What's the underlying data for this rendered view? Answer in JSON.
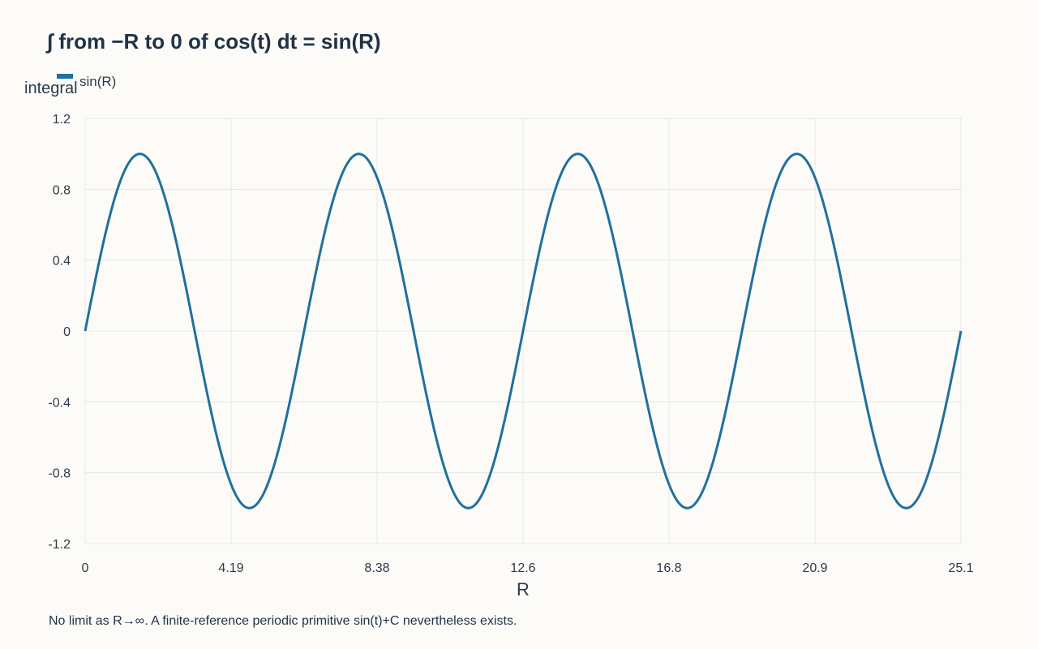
{
  "chart_data": {
    "type": "line",
    "title": "∫ from −R to 0 of cos(t) dt = sin(R)",
    "xlabel": "R",
    "ylabel": "integral",
    "xlim": [
      0,
      25.1327
    ],
    "ylim": [
      -1.2,
      1.2
    ],
    "x_ticks": [
      "0",
      "4.19",
      "8.38",
      "12.6",
      "16.8",
      "20.9",
      "25.1"
    ],
    "x_tick_values": [
      0,
      4.1888,
      8.3776,
      12.5664,
      16.7552,
      20.944,
      25.1327
    ],
    "y_ticks": [
      "1.2",
      "0.8",
      "0.4",
      "0",
      "-0.4",
      "-0.8",
      "-1.2"
    ],
    "y_tick_values": [
      1.2,
      0.8,
      0.4,
      0,
      -0.4,
      -0.8,
      -1.2
    ],
    "grid": true,
    "legend_position": "top-left",
    "series": [
      {
        "name": "sin(R)",
        "color": "#20709e",
        "x": [
          0,
          0.7854,
          1.5708,
          2.3562,
          3.1416,
          3.927,
          4.7124,
          5.4978,
          6.2832,
          7.0686,
          7.854,
          8.6394,
          9.4248,
          10.2102,
          10.9956,
          11.781,
          12.5664,
          13.3518,
          14.1372,
          14.9226,
          15.708,
          16.4934,
          17.2788,
          18.0642,
          18.8496,
          19.635,
          20.4204,
          21.2058,
          21.9911,
          22.7765,
          23.5619,
          24.3473,
          25.1327
        ],
        "y": [
          0,
          0.7071,
          1,
          0.7071,
          0,
          -0.7071,
          -1,
          -0.7071,
          0,
          0.7071,
          1,
          0.7071,
          0,
          -0.7071,
          -1,
          -0.7071,
          0,
          0.7071,
          1,
          0.7071,
          0,
          -0.7071,
          -1,
          -0.7071,
          0,
          0.7071,
          1,
          0.7071,
          0,
          -0.7071,
          -1,
          -0.7071,
          0
        ]
      }
    ],
    "caption": "No limit as R→∞. A finite-reference periodic primitive sin(t)+C nevertheless exists."
  }
}
